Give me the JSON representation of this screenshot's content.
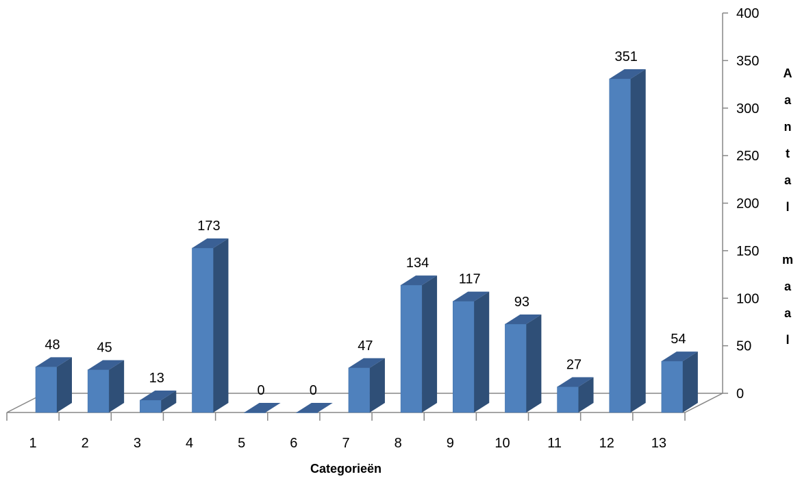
{
  "chart_data": {
    "type": "bar",
    "categories": [
      "1",
      "2",
      "3",
      "4",
      "5",
      "6",
      "7",
      "8",
      "9",
      "10",
      "11",
      "12",
      "13"
    ],
    "values": [
      48,
      45,
      13,
      173,
      0,
      0,
      47,
      134,
      117,
      93,
      27,
      351,
      54
    ],
    "xlabel": "Categorieën",
    "ylabel": "Aantal maal",
    "ylim": [
      0,
      400
    ],
    "yticks": [
      "0",
      "50",
      "100",
      "150",
      "200",
      "250",
      "300",
      "350",
      "400"
    ],
    "grid": false,
    "legend": "none",
    "bar_front_color": "#4F81BD",
    "bar_side_color": "#2F4F77",
    "bar_top_color": "#3A6095",
    "axis_color": "#868686"
  }
}
